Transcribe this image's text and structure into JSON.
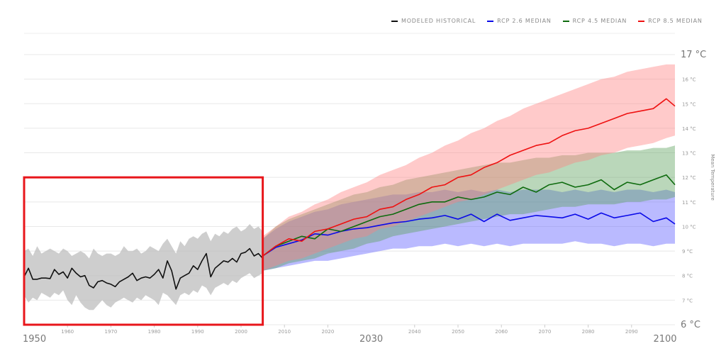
{
  "chart_data": {
    "type": "line",
    "title": "",
    "xlabel": "",
    "ylabel": "Mean Temperature",
    "xlim": [
      1950,
      2100
    ],
    "ylim": [
      6,
      17
    ],
    "grid": true,
    "legend_position": "top-right",
    "x_ticks": [
      {
        "value": 1950,
        "label": "1950",
        "major": true
      },
      {
        "value": 1960,
        "label": "1960",
        "major": false
      },
      {
        "value": 1970,
        "label": "1970",
        "major": false
      },
      {
        "value": 1980,
        "label": "1980",
        "major": false
      },
      {
        "value": 1990,
        "label": "1990",
        "major": false
      },
      {
        "value": 2000,
        "label": "2000",
        "major": false
      },
      {
        "value": 2010,
        "label": "2010",
        "major": false
      },
      {
        "value": 2020,
        "label": "2020",
        "major": false
      },
      {
        "value": 2030,
        "label": "2030",
        "major": true
      },
      {
        "value": 2040,
        "label": "2040",
        "major": false
      },
      {
        "value": 2050,
        "label": "2050",
        "major": false
      },
      {
        "value": 2060,
        "label": "2060",
        "major": false
      },
      {
        "value": 2070,
        "label": "2070",
        "major": false
      },
      {
        "value": 2080,
        "label": "2080",
        "major": false
      },
      {
        "value": 2090,
        "label": "2090",
        "major": false
      },
      {
        "value": 2100,
        "label": "2100",
        "major": true
      }
    ],
    "y_ticks": [
      {
        "value": 6,
        "label": "6 °C",
        "major": true
      },
      {
        "value": 7,
        "label": "7 °C",
        "major": false
      },
      {
        "value": 8,
        "label": "8 °C",
        "major": false
      },
      {
        "value": 9,
        "label": "9 °C",
        "major": false
      },
      {
        "value": 10,
        "label": "10 °C",
        "major": false
      },
      {
        "value": 11,
        "label": "11 °C",
        "major": false
      },
      {
        "value": 12,
        "label": "12 °C",
        "major": false
      },
      {
        "value": 13,
        "label": "13 °C",
        "major": false
      },
      {
        "value": 14,
        "label": "14 °C",
        "major": false
      },
      {
        "value": 15,
        "label": "15 °C",
        "major": false
      },
      {
        "value": 16,
        "label": "16 °C",
        "major": false
      },
      {
        "value": 17,
        "label": "17 °C",
        "major": true
      }
    ],
    "highlight_box": {
      "x": [
        1950,
        2005
      ],
      "y": [
        6,
        12
      ],
      "color": "#e8161b"
    },
    "series": [
      {
        "name": "MODELED HISTORICAL",
        "color": "#111111",
        "band_color": "#bdbdbd",
        "x": [
          1950,
          1951,
          1952,
          1953,
          1954,
          1955,
          1956,
          1957,
          1958,
          1959,
          1960,
          1961,
          1962,
          1963,
          1964,
          1965,
          1966,
          1967,
          1968,
          1969,
          1970,
          1971,
          1972,
          1973,
          1974,
          1975,
          1976,
          1977,
          1978,
          1979,
          1980,
          1981,
          1982,
          1983,
          1984,
          1985,
          1986,
          1987,
          1988,
          1989,
          1990,
          1991,
          1992,
          1993,
          1994,
          1995,
          1996,
          1997,
          1998,
          1999,
          2000,
          2001,
          2002,
          2003,
          2004,
          2005
        ],
        "y": [
          7.95,
          8.3,
          7.85,
          7.85,
          7.9,
          7.9,
          7.88,
          8.25,
          8.05,
          8.15,
          7.9,
          8.3,
          8.1,
          7.95,
          8.0,
          7.6,
          7.5,
          7.75,
          7.8,
          7.7,
          7.65,
          7.55,
          7.75,
          7.85,
          7.95,
          8.1,
          7.8,
          7.9,
          7.95,
          7.9,
          8.05,
          8.25,
          7.9,
          8.6,
          8.2,
          7.45,
          7.9,
          8.0,
          8.1,
          8.4,
          8.25,
          8.6,
          8.9,
          7.95,
          8.3,
          8.45,
          8.6,
          8.55,
          8.7,
          8.55,
          8.9,
          8.95,
          9.1,
          8.8,
          8.9,
          8.7
        ],
        "low": [
          7.2,
          6.9,
          7.1,
          7.0,
          7.3,
          7.2,
          7.1,
          7.3,
          7.2,
          7.4,
          7.0,
          6.8,
          7.2,
          6.9,
          6.7,
          6.6,
          6.6,
          6.8,
          7.0,
          6.8,
          6.7,
          6.9,
          7.0,
          7.1,
          7.0,
          6.9,
          7.1,
          7.0,
          7.2,
          7.1,
          7.0,
          6.8,
          7.3,
          7.2,
          7.0,
          6.8,
          7.2,
          7.3,
          7.2,
          7.4,
          7.3,
          7.6,
          7.5,
          7.2,
          7.5,
          7.6,
          7.7,
          7.6,
          7.8,
          7.7,
          7.9,
          8.0,
          8.1,
          7.9,
          8.0,
          8.1
        ],
        "high": [
          9.0,
          9.1,
          8.8,
          9.2,
          8.9,
          9.0,
          9.1,
          9.0,
          8.9,
          9.1,
          9.0,
          8.8,
          8.9,
          9.0,
          8.9,
          8.7,
          9.1,
          8.9,
          8.8,
          8.9,
          8.9,
          8.8,
          8.9,
          9.2,
          9.0,
          9.0,
          9.1,
          8.9,
          9.0,
          9.2,
          9.1,
          9.0,
          9.3,
          9.5,
          9.2,
          8.9,
          9.4,
          9.2,
          9.5,
          9.6,
          9.5,
          9.7,
          9.8,
          9.4,
          9.7,
          9.6,
          9.8,
          9.7,
          9.9,
          10.0,
          9.8,
          9.9,
          10.1,
          9.9,
          10.0,
          9.8
        ]
      },
      {
        "name": "RCP 2.6 MEDIAN",
        "color": "#0a0ae8",
        "band_color": "#5a5aff",
        "x": [
          2005,
          2008,
          2011,
          2014,
          2017,
          2020,
          2023,
          2026,
          2029,
          2032,
          2035,
          2038,
          2041,
          2044,
          2047,
          2050,
          2053,
          2056,
          2059,
          2062,
          2065,
          2068,
          2071,
          2074,
          2077,
          2080,
          2083,
          2086,
          2089,
          2092,
          2095,
          2098,
          2100
        ],
        "y": [
          8.8,
          9.15,
          9.3,
          9.45,
          9.7,
          9.65,
          9.8,
          9.9,
          9.95,
          10.05,
          10.15,
          10.2,
          10.3,
          10.35,
          10.45,
          10.3,
          10.5,
          10.2,
          10.5,
          10.25,
          10.35,
          10.45,
          10.4,
          10.35,
          10.5,
          10.3,
          10.55,
          10.35,
          10.45,
          10.55,
          10.2,
          10.35,
          10.1
        ],
        "low": [
          8.2,
          8.3,
          8.4,
          8.5,
          8.6,
          8.6,
          8.7,
          8.8,
          8.9,
          9.0,
          9.1,
          9.1,
          9.2,
          9.2,
          9.3,
          9.2,
          9.3,
          9.2,
          9.3,
          9.2,
          9.3,
          9.3,
          9.3,
          9.3,
          9.4,
          9.3,
          9.3,
          9.2,
          9.3,
          9.3,
          9.2,
          9.3,
          9.3
        ],
        "high": [
          9.5,
          9.9,
          10.2,
          10.4,
          10.6,
          10.7,
          10.9,
          11.0,
          11.1,
          11.2,
          11.3,
          11.3,
          11.4,
          11.4,
          11.5,
          11.4,
          11.5,
          11.4,
          11.5,
          11.4,
          11.5,
          11.5,
          11.5,
          11.4,
          11.5,
          11.4,
          11.5,
          11.4,
          11.5,
          11.5,
          11.4,
          11.5,
          11.4
        ]
      },
      {
        "name": "RCP 4.5 MEDIAN",
        "color": "#0e6b0e",
        "band_color": "#5aa05a",
        "x": [
          2005,
          2008,
          2011,
          2014,
          2017,
          2020,
          2023,
          2026,
          2029,
          2032,
          2035,
          2038,
          2041,
          2044,
          2047,
          2050,
          2053,
          2056,
          2059,
          2062,
          2065,
          2068,
          2071,
          2074,
          2077,
          2080,
          2083,
          2086,
          2089,
          2092,
          2095,
          2098,
          2100
        ],
        "y": [
          8.8,
          9.2,
          9.4,
          9.6,
          9.5,
          9.9,
          9.8,
          10.0,
          10.2,
          10.4,
          10.5,
          10.7,
          10.9,
          11.0,
          11.0,
          11.2,
          11.1,
          11.2,
          11.4,
          11.3,
          11.6,
          11.4,
          11.7,
          11.8,
          11.6,
          11.7,
          11.9,
          11.5,
          11.8,
          11.7,
          11.9,
          12.1,
          11.7
        ],
        "low": [
          8.2,
          8.3,
          8.5,
          8.6,
          8.7,
          8.9,
          9.0,
          9.1,
          9.3,
          9.4,
          9.6,
          9.7,
          9.8,
          9.9,
          10.0,
          10.1,
          10.2,
          10.3,
          10.4,
          10.5,
          10.5,
          10.6,
          10.7,
          10.8,
          10.8,
          10.9,
          10.9,
          10.9,
          11.0,
          11.0,
          11.1,
          11.1,
          11.2
        ],
        "high": [
          9.5,
          10.0,
          10.3,
          10.5,
          10.7,
          10.9,
          11.1,
          11.3,
          11.4,
          11.6,
          11.7,
          11.9,
          12.0,
          12.1,
          12.2,
          12.3,
          12.4,
          12.5,
          12.6,
          12.6,
          12.7,
          12.8,
          12.8,
          12.9,
          12.9,
          13.0,
          13.0,
          13.0,
          13.1,
          13.1,
          13.2,
          13.2,
          13.3
        ]
      },
      {
        "name": "RCP 8.5 MEDIAN",
        "color": "#ee1111",
        "band_color": "#ff8080",
        "x": [
          2005,
          2008,
          2011,
          2014,
          2017,
          2020,
          2023,
          2026,
          2029,
          2032,
          2035,
          2038,
          2041,
          2044,
          2047,
          2050,
          2053,
          2056,
          2059,
          2062,
          2065,
          2068,
          2071,
          2074,
          2077,
          2080,
          2083,
          2086,
          2089,
          2092,
          2095,
          2098,
          2100
        ],
        "y": [
          8.8,
          9.2,
          9.5,
          9.4,
          9.8,
          9.9,
          10.1,
          10.3,
          10.4,
          10.7,
          10.8,
          11.1,
          11.3,
          11.6,
          11.7,
          12.0,
          12.1,
          12.4,
          12.6,
          12.9,
          13.1,
          13.3,
          13.4,
          13.7,
          13.9,
          14.0,
          14.2,
          14.4,
          14.6,
          14.7,
          14.8,
          15.2,
          14.9
        ],
        "low": [
          8.2,
          8.4,
          8.6,
          8.7,
          8.9,
          9.1,
          9.3,
          9.5,
          9.6,
          9.9,
          10.0,
          10.2,
          10.4,
          10.6,
          10.8,
          11.0,
          11.1,
          11.3,
          11.5,
          11.7,
          11.9,
          12.1,
          12.2,
          12.4,
          12.6,
          12.7,
          12.9,
          13.0,
          13.2,
          13.3,
          13.4,
          13.6,
          13.7
        ],
        "high": [
          9.6,
          10.0,
          10.4,
          10.6,
          10.9,
          11.1,
          11.4,
          11.6,
          11.8,
          12.1,
          12.3,
          12.5,
          12.8,
          13.0,
          13.3,
          13.5,
          13.8,
          14.0,
          14.3,
          14.5,
          14.8,
          15.0,
          15.2,
          15.4,
          15.6,
          15.8,
          16.0,
          16.1,
          16.3,
          16.4,
          16.5,
          16.6,
          16.6
        ]
      }
    ]
  }
}
